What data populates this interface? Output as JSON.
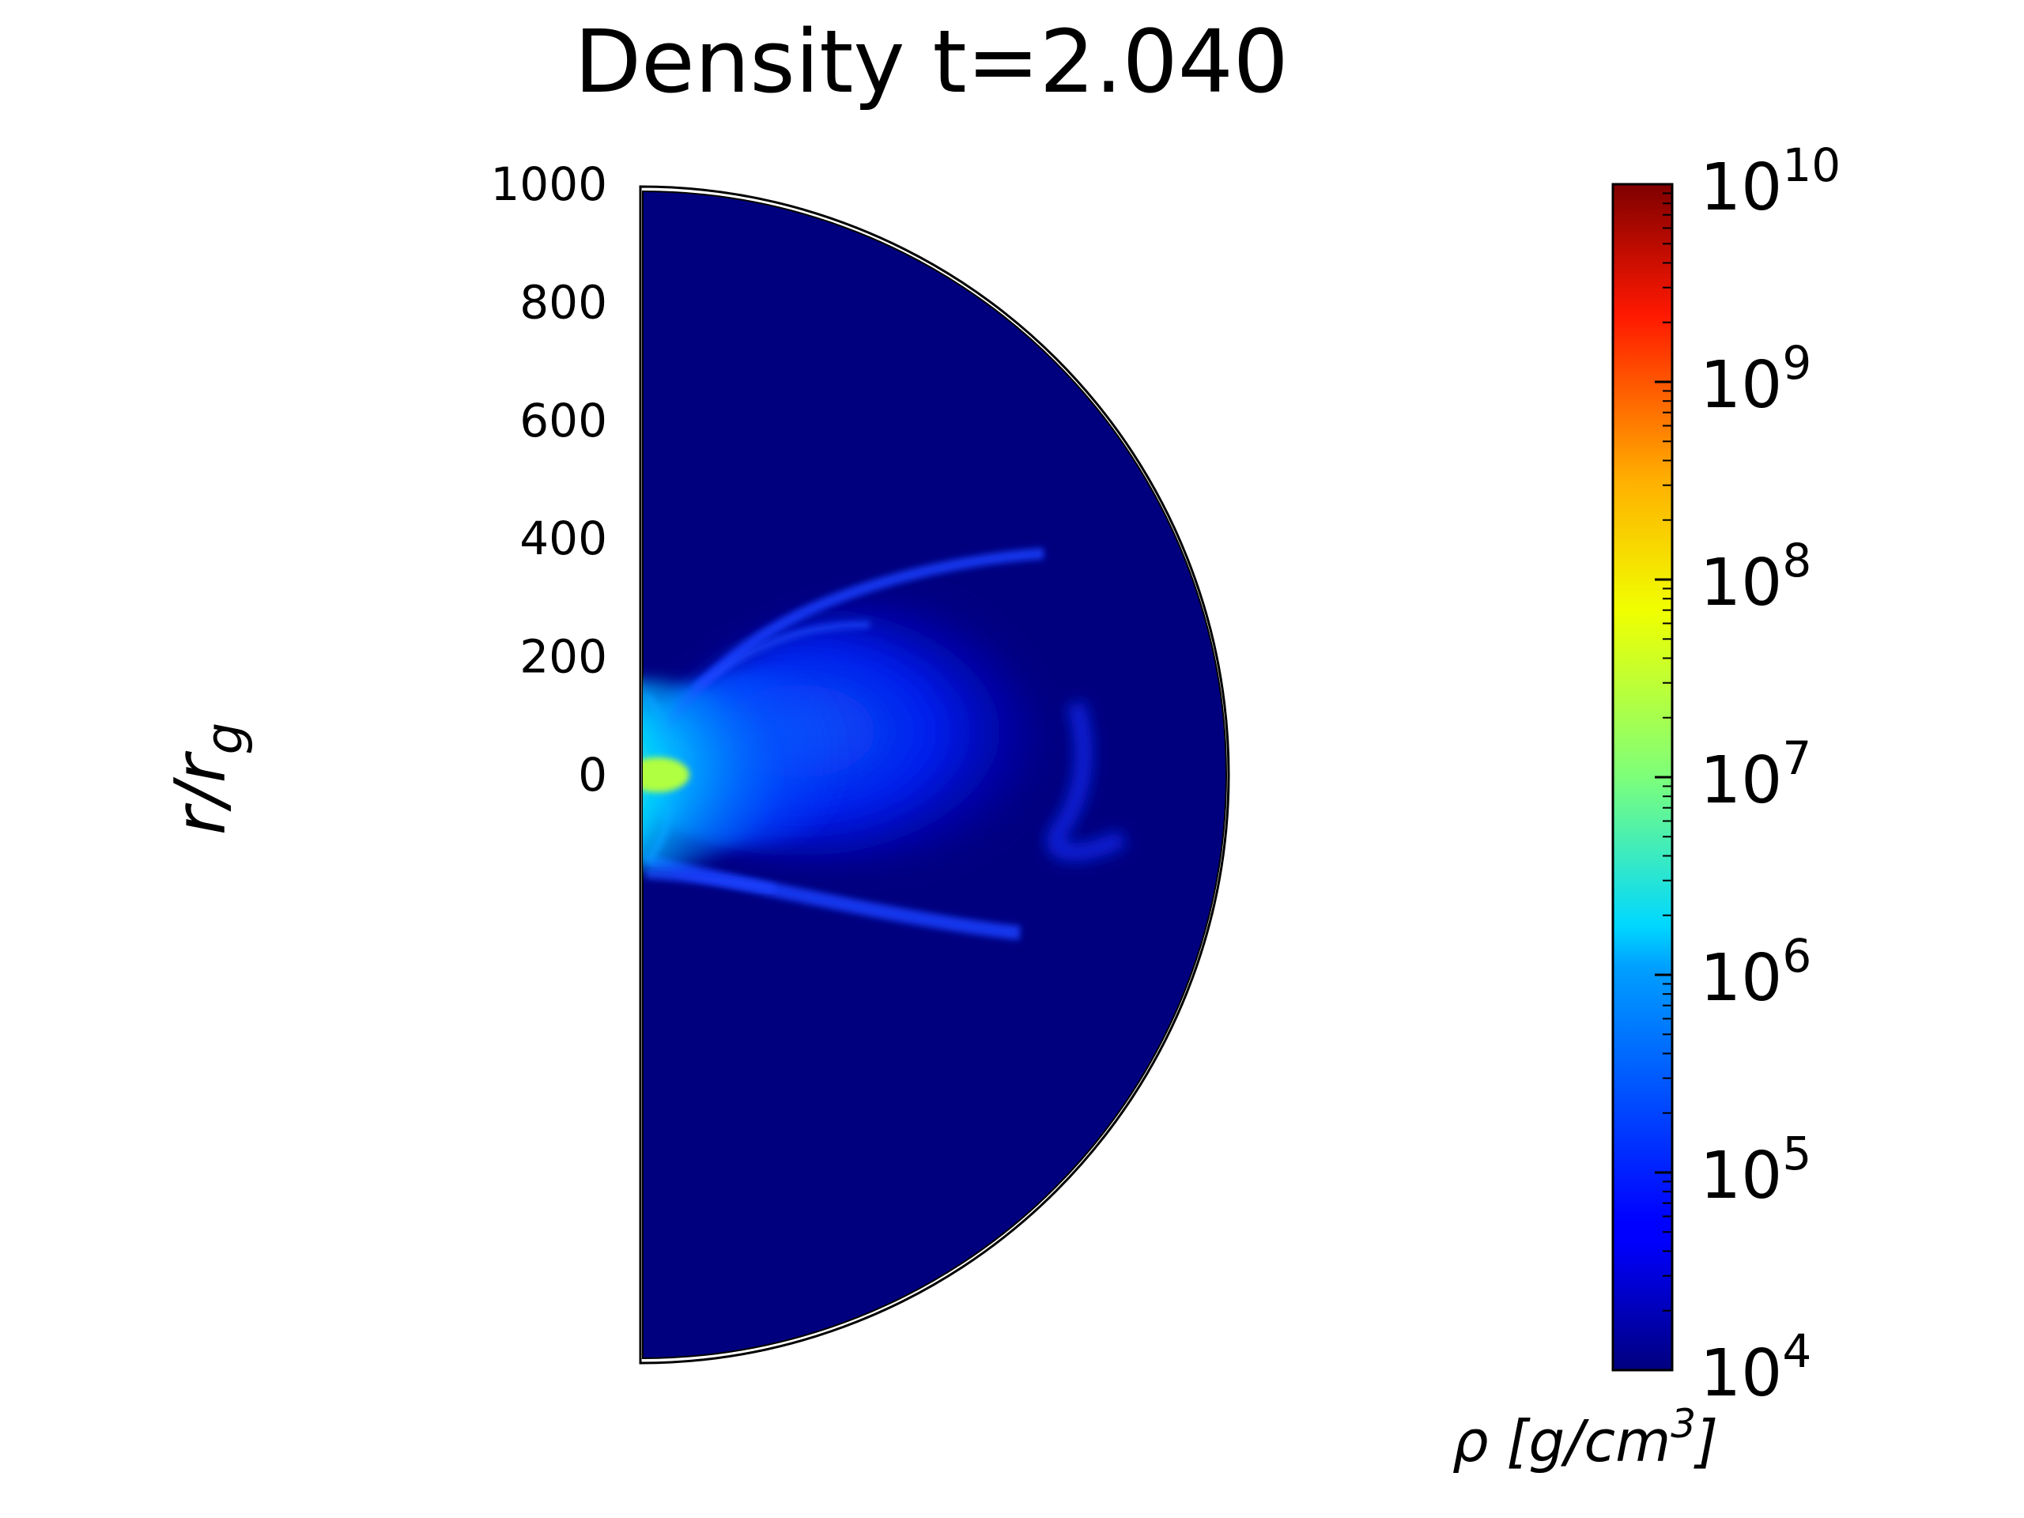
{
  "chart_data": {
    "type": "heatmap",
    "title": "Density t=2.040",
    "ylabel": "r/r_g",
    "ylabel_main": "r/r",
    "ylabel_sub": "g",
    "y_ticks": [
      0,
      200,
      400,
      600,
      800,
      1000
    ],
    "y_tick_labels": [
      "0",
      "200",
      "400",
      "600",
      "800",
      "1000"
    ],
    "ylim": [
      -1000,
      1000
    ],
    "domain_shape": "half-disk (meridional plane, polar angle 0 to pi)",
    "colorbar": {
      "label": "ρ [g/cm3]",
      "label_main": "ρ [g/cm",
      "label_sup": "3",
      "label_close": "]",
      "scale": "log",
      "range": [
        10000,
        10000000000
      ],
      "tick_values": [
        10000,
        100000,
        1000000,
        10000000,
        100000000,
        1000000000,
        10000000000
      ],
      "tick_base": "10",
      "tick_exponents": [
        "4",
        "5",
        "6",
        "7",
        "8",
        "9",
        "10"
      ],
      "colormap": "jet",
      "colormap_stops": [
        "#00007f",
        "#0000ff",
        "#007fff",
        "#00ffff",
        "#7fff7f",
        "#ffff00",
        "#ff7f00",
        "#ff0000",
        "#7f0000"
      ]
    },
    "field": {
      "background_log_rho": 4,
      "core_log_rho": 7,
      "lobe_log_rho": 5.2,
      "filament_log_rho": 5.5,
      "core_location_r": 0,
      "lobe_extent_r": [
        0,
        850
      ]
    }
  }
}
